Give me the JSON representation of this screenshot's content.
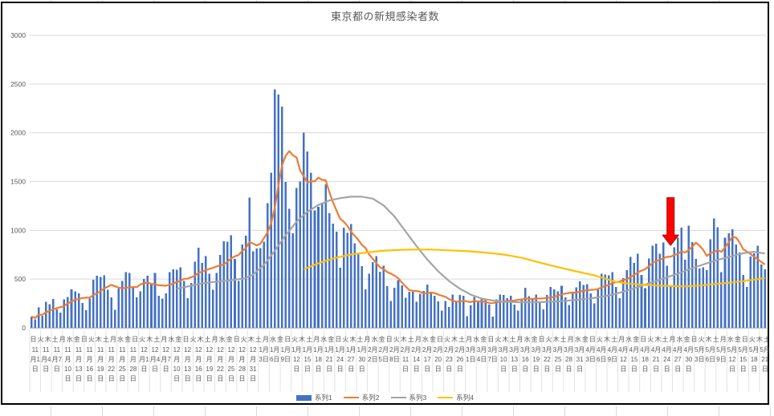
{
  "sheet": {
    "gridline_color": "#d9d9d9",
    "chart_border_color": "#000000"
  },
  "chart": {
    "text_color": "#595959",
    "gridline_color": "#d9d9d9",
    "axis_line_color": "#bfbfbf",
    "background": "#ffffff"
  },
  "chart_data": {
    "type": "bar",
    "title": "東京都の新規感染者数",
    "ylim": [
      0,
      3000
    ],
    "y_ticks": [
      0,
      500,
      1000,
      1500,
      2000,
      2500,
      3000
    ],
    "grid": "horizontal",
    "legend_position": "bottom",
    "days_total": 203,
    "x_axis": {
      "dow_cycle": [
        "日",
        "火",
        "木",
        "土",
        "月",
        "水",
        "金"
      ],
      "dow_interval_days": 2,
      "date_interval_days": 3,
      "date_labels": [
        "11月1日",
        "11月4日",
        "11月7日",
        "11月10日",
        "11月13日",
        "11月16日",
        "11月19日",
        "11月22日",
        "11月25日",
        "11月28日",
        "12月1日",
        "12月4日",
        "12月7日",
        "12月10日",
        "12月13日",
        "12月16日",
        "12月19日",
        "12月22日",
        "12月25日",
        "12月28日",
        "12月31日",
        "1月3日",
        "1月6日",
        "1月9日",
        "1月12日",
        "1月15日",
        "1月18日",
        "1月21日",
        "1月24日",
        "1月27日",
        "1月30日",
        "2月2日",
        "2月5日",
        "2月8日",
        "2月11日",
        "2月14日",
        "2月17日",
        "2月20日",
        "2月23日",
        "2月26日",
        "3月1日",
        "3月4日",
        "3月7日",
        "3月10日",
        "3月13日",
        "3月16日",
        "3月19日",
        "3月22日",
        "3月25日",
        "3月28日",
        "3月31日",
        "4月3日",
        "4月6日",
        "4月9日",
        "4月12日",
        "4月15日",
        "4月18日",
        "4月21日",
        "4月24日",
        "4月27日",
        "4月30日",
        "5月3日",
        "5月6日",
        "5月9日",
        "5月12日",
        "5月15日",
        "5月18日",
        "5月21日"
      ]
    },
    "series": [
      {
        "name": "系列1",
        "type": "bar",
        "color": "#4472C4",
        "values": [
          116,
          87,
          209,
          122,
          269,
          242,
          294,
          189,
          157,
          293,
          317,
          393,
          374,
          352,
          255,
          180,
          298,
          493,
          534,
          522,
          539,
          391,
          314,
          186,
          401,
          481,
          570,
          561,
          418,
          311,
          372,
          500,
          533,
          449,
          561,
          327,
          299,
          352,
          572,
          602,
          595,
          621,
          480,
          305,
          460,
          678,
          822,
          664,
          736,
          556,
          392,
          563,
          748,
          888,
          884,
          949,
          708,
          481,
          856,
          944,
          1337,
          783,
          814,
          816,
          884,
          1278,
          1591,
          2447,
          2392,
          2268,
          1494,
          1219,
          970,
          1433,
          1502,
          2001,
          1809,
          1592,
          1204,
          1240,
          1274,
          1471,
          1175,
          1070,
          986,
          618,
          1026,
          973,
          1064,
          868,
          769,
          633,
          393,
          556,
          676,
          734,
          577,
          639,
          429,
          276,
          412,
          491,
          434,
          307,
          369,
          371,
          266,
          350,
          378,
          445,
          353,
          327,
          272,
          178,
          275,
          213,
          340,
          270,
          337,
          329,
          121,
          232,
          316,
          279,
          301,
          293,
          237,
          116,
          290,
          340,
          335,
          304,
          330,
          239,
          175,
          300,
          409,
          323,
          303,
          342,
          256,
          187,
          337,
          420,
          394,
          376,
          430,
          313,
          234,
          364,
          414,
          475,
          440,
          446,
          355,
          249,
          399,
          555,
          545,
          537,
          570,
          421,
          306,
          510,
          591,
          729,
          667,
          759,
          543,
          405,
          711,
          843,
          861,
          759,
          876,
          635,
          425,
          828,
          925,
          1027,
          698,
          1050,
          879,
          708,
          609,
          621,
          591,
          907,
          1121,
          1032,
          573,
          925,
          969,
          1010,
          854,
          772,
          542,
          419,
          732,
          766,
          843,
          649,
          602
        ]
      },
      {
        "name": "系列2",
        "type": "line",
        "color": "#ED7D31",
        "derivation": "7-day trailing moving average of 系列1"
      },
      {
        "name": "系列3",
        "type": "line",
        "color": "#A5A5A5",
        "points": [
          [
            40,
            400
          ],
          [
            44,
            432
          ],
          [
            47,
            455
          ],
          [
            50,
            470
          ],
          [
            53,
            480
          ],
          [
            56,
            492
          ],
          [
            59,
            510
          ],
          [
            61,
            545
          ],
          [
            64,
            645
          ],
          [
            67,
            790
          ],
          [
            70,
            950
          ],
          [
            73,
            1090
          ],
          [
            76,
            1190
          ],
          [
            79,
            1260
          ],
          [
            82,
            1305
          ],
          [
            85,
            1330
          ],
          [
            88,
            1345
          ],
          [
            91,
            1345
          ],
          [
            94,
            1325
          ],
          [
            97,
            1255
          ],
          [
            100,
            1140
          ],
          [
            103,
            990
          ],
          [
            106,
            840
          ],
          [
            109,
            700
          ],
          [
            112,
            580
          ],
          [
            115,
            480
          ],
          [
            118,
            400
          ],
          [
            121,
            340
          ],
          [
            124,
            300
          ],
          [
            127,
            280
          ],
          [
            130,
            268
          ],
          [
            134,
            262
          ],
          [
            138,
            262
          ],
          [
            142,
            266
          ],
          [
            146,
            274
          ],
          [
            150,
            286
          ],
          [
            154,
            302
          ],
          [
            158,
            325
          ],
          [
            162,
            360
          ],
          [
            166,
            405
          ],
          [
            170,
            455
          ],
          [
            174,
            505
          ],
          [
            178,
            555
          ],
          [
            182,
            612
          ],
          [
            186,
            662
          ],
          [
            190,
            708
          ],
          [
            193,
            735
          ],
          [
            196,
            765
          ],
          [
            199,
            780
          ],
          [
            202,
            762
          ]
        ]
      },
      {
        "name": "系列4",
        "type": "line",
        "color": "#FFC000",
        "points": [
          [
            75,
            600
          ],
          [
            78,
            648
          ],
          [
            81,
            688
          ],
          [
            84,
            720
          ],
          [
            88,
            752
          ],
          [
            92,
            772
          ],
          [
            96,
            788
          ],
          [
            100,
            797
          ],
          [
            105,
            803
          ],
          [
            110,
            803
          ],
          [
            115,
            795
          ],
          [
            120,
            786
          ],
          [
            125,
            772
          ],
          [
            130,
            752
          ],
          [
            135,
            718
          ],
          [
            140,
            668
          ],
          [
            143,
            640
          ],
          [
            146,
            614
          ],
          [
            149,
            588
          ],
          [
            152,
            562
          ],
          [
            155,
            538
          ],
          [
            158,
            505
          ],
          [
            161,
            470
          ],
          [
            164,
            455
          ],
          [
            168,
            442
          ],
          [
            172,
            434
          ],
          [
            176,
            428
          ],
          [
            180,
            425
          ],
          [
            184,
            433
          ],
          [
            188,
            448
          ],
          [
            192,
            463
          ],
          [
            196,
            478
          ],
          [
            200,
            500
          ],
          [
            202,
            510
          ]
        ]
      }
    ],
    "annotation": {
      "shape": "down-arrow",
      "fill": "#FF0000",
      "outline": "#B00000",
      "day_index": 176,
      "tail_value": 1335,
      "tip_value": 845
    }
  },
  "legend": {
    "items": [
      {
        "label": "系列1",
        "swatch": "bar",
        "color": "#4472C4"
      },
      {
        "label": "系列2",
        "swatch": "line",
        "color": "#ED7D31"
      },
      {
        "label": "系列3",
        "swatch": "line",
        "color": "#A5A5A5"
      },
      {
        "label": "系列4",
        "swatch": "line",
        "color": "#FFC000"
      }
    ]
  }
}
